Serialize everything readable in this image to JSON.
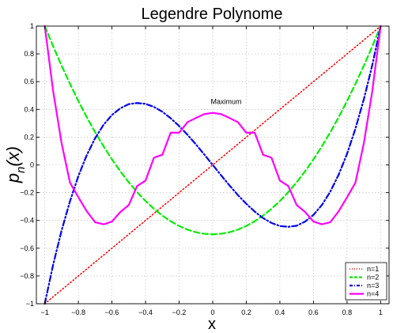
{
  "chart_data": {
    "type": "line",
    "title": "Legendre Polynome",
    "xlabel": "x",
    "ylabel": "p_n(x)",
    "xlim": [
      -1.05,
      1.05
    ],
    "ylim": [
      -1,
      1
    ],
    "xticks": [
      -1,
      -0.8,
      -0.6,
      -0.4,
      -0.2,
      0,
      0.2,
      0.4,
      0.6,
      0.8,
      1
    ],
    "xtick_labels": [
      "−1",
      "−0.8",
      "−0.6",
      "−0.4",
      "−0.2",
      "0",
      "0.2",
      "0.4",
      "0.6",
      "0.8",
      "1"
    ],
    "yticks": [
      -1,
      -0.8,
      -0.6,
      -0.4,
      -0.2,
      0,
      0.2,
      0.4,
      0.6,
      0.8,
      1
    ],
    "ytick_labels": [
      "−1",
      "−0.8",
      "−0.6",
      "−0.4",
      "−0.2",
      "0",
      "0.2",
      "0.4",
      "0.6",
      "0.8",
      "1"
    ],
    "grid": true,
    "legend_position": "bottom-right",
    "x": [
      -1,
      -0.95,
      -0.9,
      -0.85,
      -0.8,
      -0.75,
      -0.7,
      -0.65,
      -0.6,
      -0.55,
      -0.5,
      -0.45,
      -0.4,
      -0.35,
      -0.3,
      -0.25,
      -0.2,
      -0.15,
      -0.1,
      -0.05,
      0,
      0.05,
      0.1,
      0.15,
      0.2,
      0.25,
      0.3,
      0.35,
      0.4,
      0.45,
      0.5,
      0.55,
      0.6,
      0.65,
      0.7,
      0.75,
      0.8,
      0.85,
      0.9,
      0.95,
      1
    ],
    "series": [
      {
        "name": "n=1",
        "color": "#ff0000",
        "dash": "dotted",
        "values": [
          -1,
          -0.95,
          -0.9,
          -0.85,
          -0.8,
          -0.75,
          -0.7,
          -0.65,
          -0.6,
          -0.55,
          -0.5,
          -0.45,
          -0.4,
          -0.35,
          -0.3,
          -0.25,
          -0.2,
          -0.15,
          -0.1,
          -0.05,
          0,
          0.05,
          0.1,
          0.15,
          0.2,
          0.25,
          0.3,
          0.35,
          0.4,
          0.45,
          0.5,
          0.55,
          0.6,
          0.65,
          0.7,
          0.75,
          0.8,
          0.85,
          0.9,
          0.95,
          1
        ]
      },
      {
        "name": "n=2",
        "color": "#00ee00",
        "dash": "dashed",
        "values": [
          1,
          0.854,
          0.715,
          0.584,
          0.46,
          0.344,
          0.235,
          0.134,
          0.04,
          -0.046,
          -0.125,
          -0.196,
          -0.26,
          -0.316,
          -0.365,
          -0.406,
          -0.44,
          -0.466,
          -0.485,
          -0.496,
          -0.5,
          -0.496,
          -0.485,
          -0.466,
          -0.44,
          -0.406,
          -0.365,
          -0.316,
          -0.26,
          -0.196,
          -0.125,
          -0.046,
          0.04,
          0.134,
          0.235,
          0.344,
          0.46,
          0.584,
          0.715,
          0.854,
          1
        ]
      },
      {
        "name": "n=3",
        "color": "#0000ee",
        "dash": "dashdot",
        "values": [
          -1,
          -0.718,
          -0.473,
          -0.262,
          -0.08,
          0.07,
          0.193,
          0.289,
          0.36,
          0.408,
          0.438,
          0.446,
          0.44,
          0.418,
          0.383,
          0.336,
          0.28,
          0.217,
          0.148,
          0.075,
          0,
          -0.075,
          -0.148,
          -0.217,
          -0.28,
          -0.336,
          -0.383,
          -0.418,
          -0.44,
          -0.446,
          -0.438,
          -0.408,
          -0.36,
          -0.289,
          -0.193,
          -0.07,
          0.08,
          0.262,
          0.473,
          0.718,
          1
        ]
      },
      {
        "name": "n=4",
        "color": "#ff00ff",
        "dash": "solid",
        "values": [
          1,
          0.53,
          0.157,
          -0.127,
          -0.233,
          -0.334,
          -0.413,
          -0.428,
          -0.408,
          -0.339,
          -0.289,
          -0.152,
          -0.113,
          0.052,
          0.073,
          0.232,
          0.232,
          0.308,
          0.338,
          0.366,
          0.375,
          0.366,
          0.338,
          0.308,
          0.232,
          0.232,
          0.073,
          0.052,
          -0.113,
          -0.152,
          -0.289,
          -0.339,
          -0.408,
          -0.428,
          -0.413,
          -0.334,
          -0.233,
          -0.127,
          0.157,
          0.53,
          1
        ]
      }
    ],
    "annotations": [
      {
        "text": "Maximum",
        "x": 0.08,
        "y": 0.44
      }
    ]
  }
}
